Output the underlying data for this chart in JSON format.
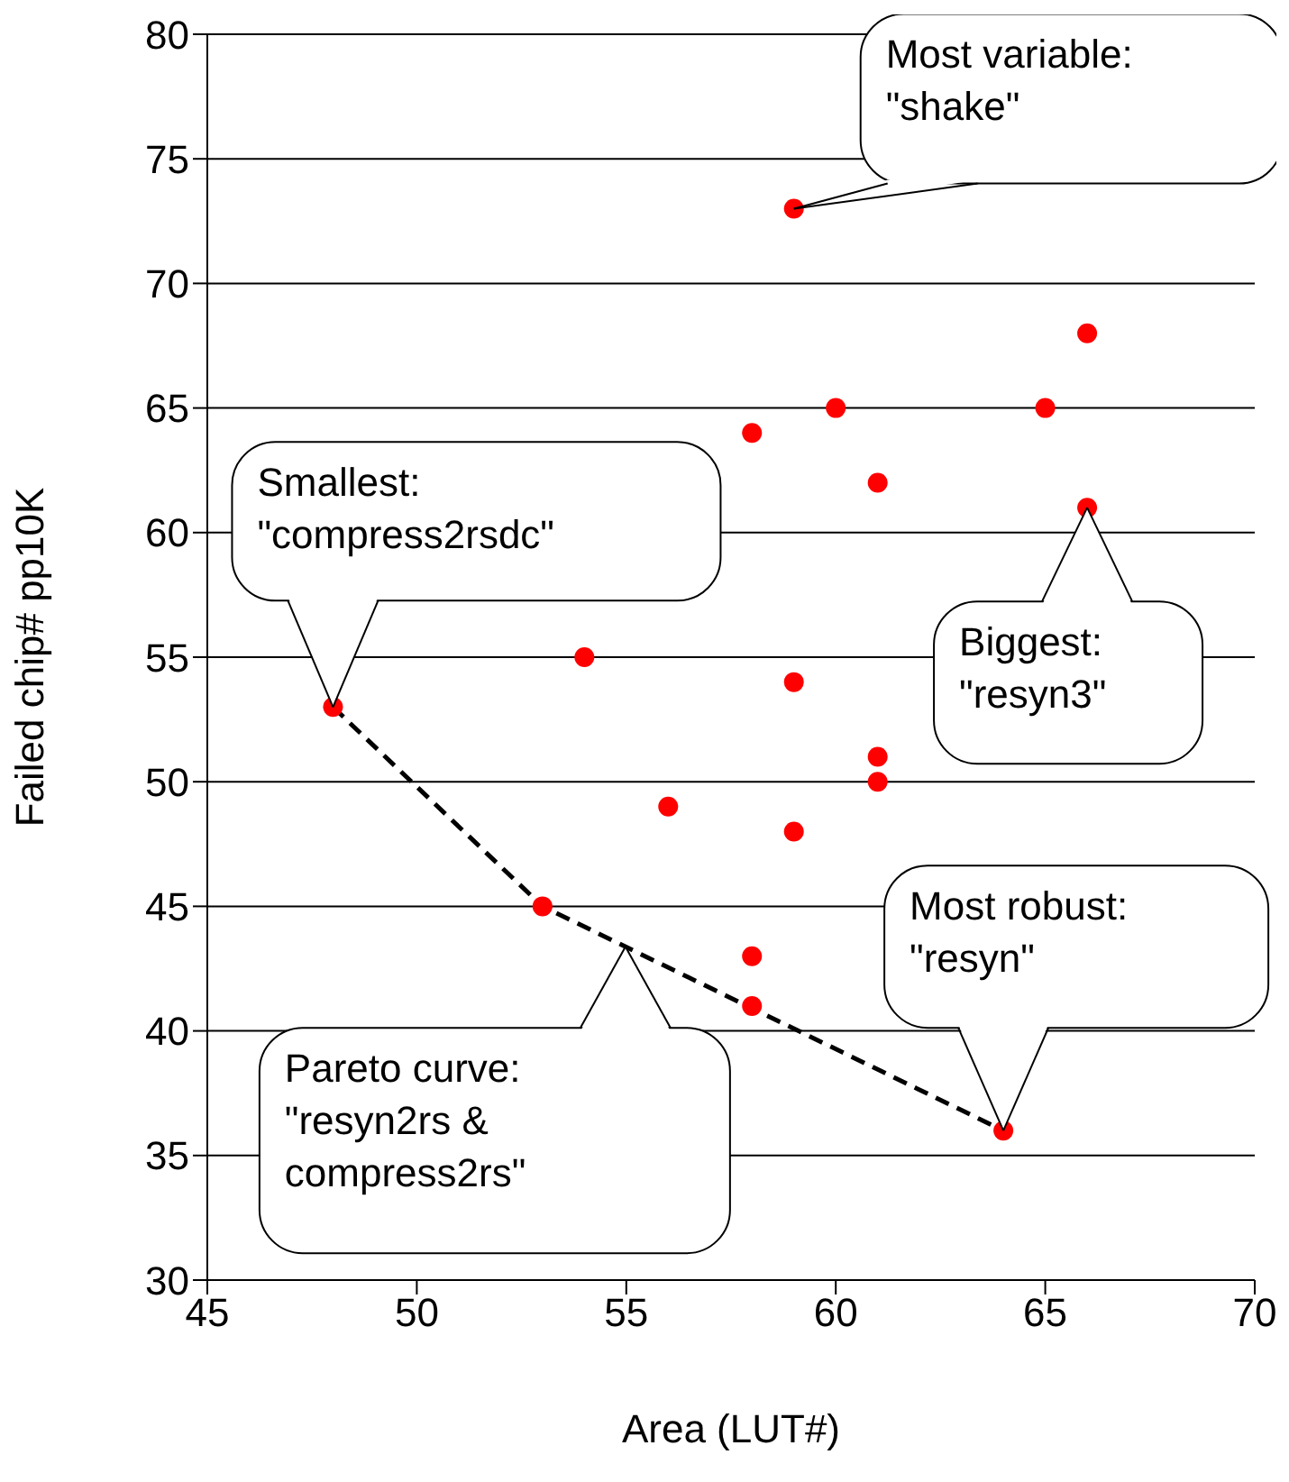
{
  "chart_data": {
    "type": "scatter",
    "xlabel": "Area (LUT#)",
    "ylabel": "Failed chip# pp10K",
    "xlim": [
      45,
      70
    ],
    "xticks": [
      45,
      50,
      55,
      60,
      65,
      70
    ],
    "ylim": [
      30,
      80
    ],
    "yticks": [
      30,
      35,
      40,
      45,
      50,
      55,
      60,
      65,
      70,
      75,
      80
    ],
    "grid": "y",
    "legend": false,
    "marker": "circle",
    "series": [
      {
        "color": "#ff0000",
        "x": [
          59,
          66,
          60,
          65,
          58,
          61,
          66,
          54,
          48,
          59,
          61,
          61,
          56,
          59,
          53,
          58,
          58,
          64
        ],
        "values": [
          73,
          68,
          65,
          65,
          64,
          62,
          61,
          55,
          53,
          54,
          51,
          50,
          49,
          48,
          45,
          43,
          41,
          36
        ]
      },
      {
        "type": "line",
        "color": "#000000",
        "line_style": "dashed",
        "marker": "none",
        "x": [
          48,
          53,
          64
        ],
        "values": [
          53,
          45,
          36
        ]
      }
    ],
    "annotations": [
      {
        "text": "Smallest:\n\"compress2rsdc\"",
        "x": 48,
        "y": 53
      },
      {
        "text": "Most variable:\n\"shake\"",
        "x": 59,
        "y": 73
      },
      {
        "text": "Biggest:\n\"resyn3\"",
        "x": 66,
        "y": 61
      },
      {
        "text": "Most robust:\n\"resyn\"",
        "x": 64,
        "y": 36
      },
      "Pareto curve:\n\"resyn2rs &\ncompress2rs\""
    ]
  }
}
